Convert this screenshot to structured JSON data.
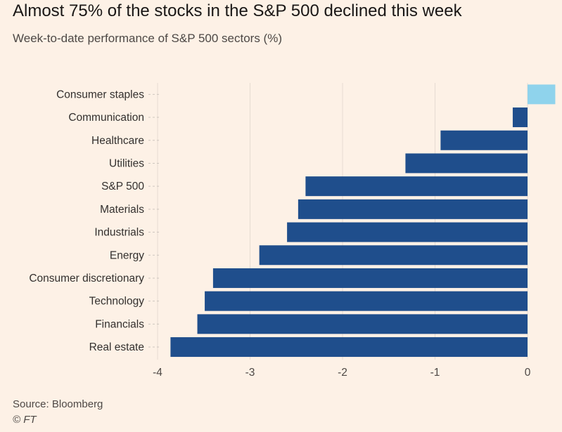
{
  "title": "Almost 75% of the stocks in the S&P 500 declined this week",
  "subtitle": "Week-to-date performance of S&P 500 sectors (%)",
  "source": "Source: Bloomberg",
  "credit": "© FT",
  "colors": {
    "background": "#FDF1E6",
    "negative_bar": "#1F4E8C",
    "positive_bar": "#8FD3EC",
    "grid": "#E6DBD2",
    "dashed": "#CEC6BF"
  },
  "chart_data": {
    "type": "bar",
    "orientation": "horizontal",
    "title": "Almost 75% of the stocks in the S&P 500 declined this week",
    "subtitle": "Week-to-date performance of S&P 500 sectors (%)",
    "categories": [
      "Consumer staples",
      "Communication",
      "Healthcare",
      "Utilities",
      "S&P 500",
      "Materials",
      "Industrials",
      "Energy",
      "Consumer discretionary",
      "Technology",
      "Financials",
      "Real estate"
    ],
    "values": [
      0.3,
      -0.16,
      -0.94,
      -1.32,
      -2.4,
      -2.48,
      -2.6,
      -2.9,
      -3.4,
      -3.49,
      -3.57,
      -3.86
    ],
    "xlim": [
      -4,
      0.3
    ],
    "xticks": [
      -4,
      -3,
      -2,
      -1,
      0
    ],
    "xtick_labels": [
      "-4",
      "-3",
      "-2",
      "-1",
      "0"
    ],
    "grid": true,
    "legend": "none"
  }
}
